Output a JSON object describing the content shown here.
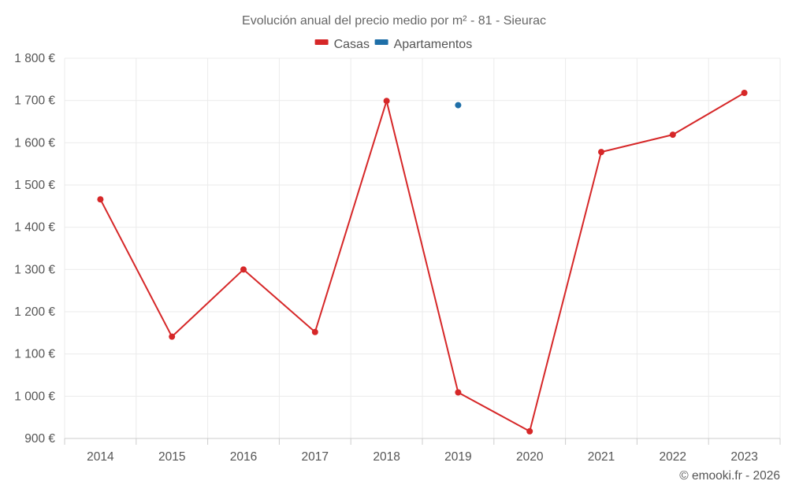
{
  "chart_data": {
    "type": "line",
    "title": "Evolución anual del precio medio por m² - 81 - Sieurac",
    "categories": [
      "2014",
      "2015",
      "2016",
      "2017",
      "2018",
      "2019",
      "2020",
      "2021",
      "2022",
      "2023"
    ],
    "series": [
      {
        "name": "Casas",
        "color": "#d62728",
        "values": [
          1466,
          1141,
          1300,
          1152,
          1699,
          1009,
          917,
          1578,
          1619,
          1718
        ]
      },
      {
        "name": "Apartamentos",
        "color": "#1f6fa8",
        "values": [
          null,
          null,
          null,
          null,
          null,
          1689,
          null,
          null,
          null,
          null
        ]
      }
    ],
    "ylim": [
      900,
      1800
    ],
    "yticks": [
      900,
      1000,
      1100,
      1200,
      1300,
      1400,
      1500,
      1600,
      1700,
      1800
    ],
    "ytick_labels": [
      "900 €",
      "1 000 €",
      "1 100 €",
      "1 200 €",
      "1 300 €",
      "1 400 €",
      "1 500 €",
      "1 600 €",
      "1 700 €",
      "1 800 €"
    ],
    "xlabel": "",
    "ylabel": "",
    "grid": true,
    "legend_position": "top-center"
  },
  "credit": "© emooki.fr - 2026"
}
